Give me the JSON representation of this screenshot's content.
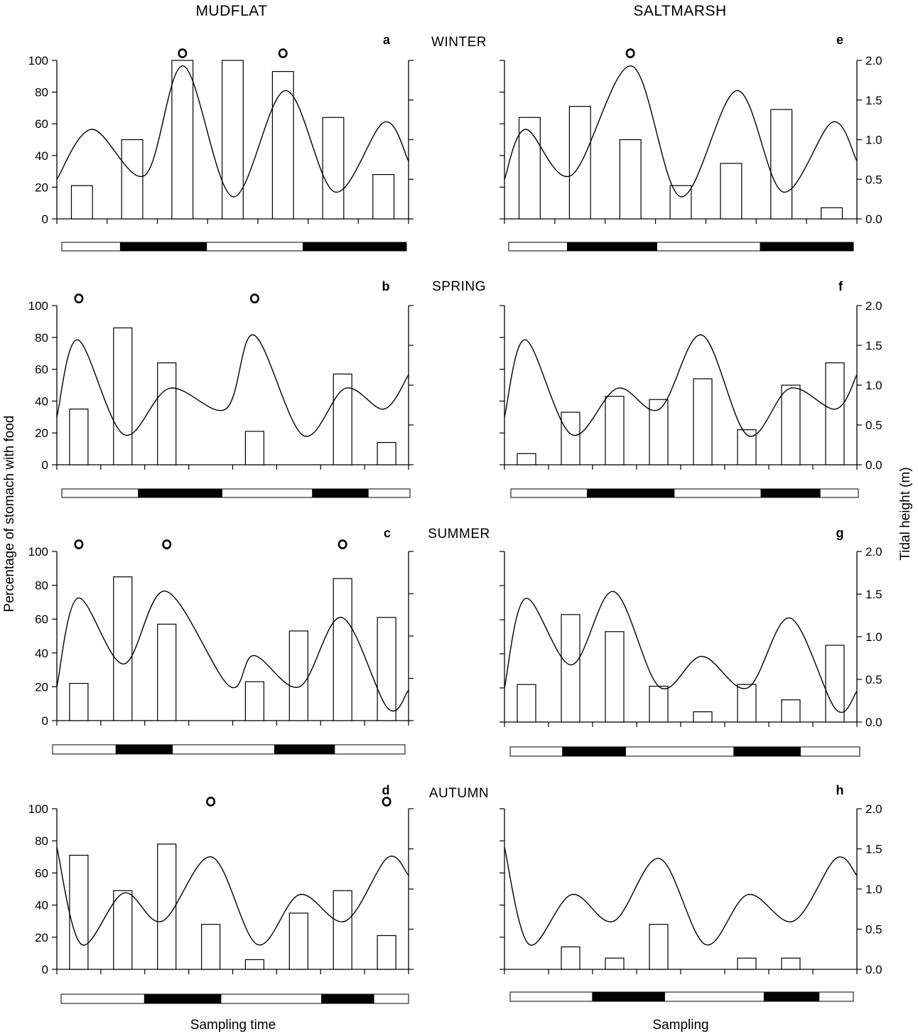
{
  "column_titles": [
    "MUDFLAT",
    "SALTMARSH"
  ],
  "season_labels": [
    "WINTER",
    "SPRING",
    "SUMMER",
    "AUTUMN"
  ],
  "left_axis_title": "Percentage of stomach with food",
  "right_axis_title": "Tidal height (m)",
  "x_labels": {
    "left": "Sampling time",
    "right": "Sampling"
  },
  "colors": {
    "bar_fill": "#ffffff",
    "stroke": "#000000",
    "night": "#000000",
    "day": "#ffffff"
  },
  "chart_data": [
    {
      "type": "bar",
      "panel": "a",
      "column": "MUDFLAT",
      "season": "WINTER",
      "ylabel": "Percentage of stomach with food",
      "ylim": [
        0,
        100
      ],
      "yticks": [
        0,
        20,
        40,
        60,
        80,
        100
      ],
      "n_slots": 7,
      "bar_slots": [
        0,
        1,
        2,
        3,
        4,
        5,
        6
      ],
      "values": [
        21,
        50,
        100,
        100,
        93,
        64,
        28
      ],
      "marker_slots": [
        2,
        4
      ],
      "tide_line": {
        "y2lim": [
          0,
          2
        ],
        "x": [
          0,
          0.1,
          0.25,
          0.36,
          0.5,
          0.65,
          0.79,
          0.93,
          1
        ],
        "y": [
          0.5,
          1.13,
          0.55,
          1.93,
          0.28,
          1.62,
          0.34,
          1.22,
          0.73
        ]
      },
      "light_bar": [
        [
          "day",
          0,
          0.17
        ],
        [
          "night",
          0.17,
          0.42
        ],
        [
          "day",
          0.42,
          0.7
        ],
        [
          "night",
          0.7,
          1
        ]
      ]
    },
    {
      "type": "bar",
      "panel": "b",
      "column": "MUDFLAT",
      "season": "SPRING",
      "ylabel": "Percentage of stomach with food",
      "ylim": [
        0,
        100
      ],
      "yticks": [
        0,
        20,
        40,
        60,
        80,
        100
      ],
      "n_slots": 8,
      "bar_slots": [
        0,
        1,
        2,
        4,
        6,
        7
      ],
      "values": [
        35,
        86,
        64,
        21,
        57,
        14
      ],
      "marker_slots": [
        0,
        4
      ],
      "tide_line": {
        "y2lim": [
          0,
          2
        ],
        "x": [
          0,
          0.06,
          0.19,
          0.32,
          0.48,
          0.56,
          0.7,
          0.82,
          0.93,
          1
        ],
        "y": [
          0.6,
          1.57,
          0.38,
          0.96,
          0.7,
          1.63,
          0.37,
          0.96,
          0.7,
          1.13
        ]
      },
      "light_bar": [
        [
          "day",
          0,
          0.22
        ],
        [
          "night",
          0.22,
          0.46
        ],
        [
          "day",
          0.46,
          0.72
        ],
        [
          "night",
          0.72,
          0.88
        ],
        [
          "day",
          0.88,
          1
        ]
      ]
    },
    {
      "type": "bar",
      "panel": "c",
      "column": "MUDFLAT",
      "season": "SUMMER",
      "ylabel": "Percentage of stomach with food",
      "ylim": [
        0,
        100
      ],
      "yticks": [
        0,
        20,
        40,
        60,
        80,
        100
      ],
      "n_slots": 8,
      "bar_slots": [
        0,
        1,
        2,
        4,
        5,
        6,
        7
      ],
      "values": [
        22,
        85,
        57,
        23,
        53,
        84,
        61
      ],
      "marker_slots": [
        0,
        2,
        6
      ],
      "tide_line": {
        "y2lim": [
          0,
          2
        ],
        "x": [
          0,
          0.06,
          0.19,
          0.31,
          0.49,
          0.56,
          0.69,
          0.81,
          0.94,
          1
        ],
        "y": [
          0.4,
          1.45,
          0.67,
          1.53,
          0.41,
          0.77,
          0.4,
          1.22,
          0.15,
          0.36
        ]
      },
      "light_bar": [
        [
          "day",
          0,
          0.18
        ],
        [
          "night",
          0.18,
          0.34
        ],
        [
          "day",
          0.34,
          0.63
        ],
        [
          "night",
          0.63,
          0.8
        ],
        [
          "day",
          0.8,
          1
        ]
      ]
    },
    {
      "type": "bar",
      "panel": "d",
      "column": "MUDFLAT",
      "season": "AUTUMN",
      "ylabel": "Percentage of stomach with food",
      "ylim": [
        0,
        100
      ],
      "yticks": [
        0,
        20,
        40,
        60,
        80,
        100
      ],
      "n_slots": 8,
      "bar_slots": [
        0,
        1,
        2,
        3,
        4,
        5,
        6,
        7
      ],
      "values": [
        71,
        49,
        78,
        28,
        6,
        35,
        49,
        21
      ],
      "marker_slots": [
        3,
        7
      ],
      "tide_line": {
        "y2lim": [
          0,
          2
        ],
        "x": [
          0,
          0.07,
          0.19,
          0.3,
          0.44,
          0.57,
          0.69,
          0.82,
          0.94,
          1
        ],
        "y": [
          1.52,
          0.31,
          0.95,
          0.6,
          1.4,
          0.31,
          0.93,
          0.6,
          1.39,
          1.17
        ]
      },
      "light_bar": [
        [
          "day",
          0,
          0.24
        ],
        [
          "night",
          0.24,
          0.46
        ],
        [
          "day",
          0.46,
          0.75
        ],
        [
          "night",
          0.75,
          0.9
        ],
        [
          "day",
          0.9,
          1
        ]
      ]
    },
    {
      "type": "bar",
      "panel": "e",
      "column": "SALTMARSH",
      "season": "WINTER",
      "y2label": "Tidal height (m)",
      "ylim": [
        0,
        100
      ],
      "y2lim": [
        0,
        2
      ],
      "y2ticks": [
        "0.0",
        "0.5",
        "1.0",
        "1.5",
        "2.0"
      ],
      "n_slots": 7,
      "bar_slots": [
        0,
        1,
        2,
        3,
        4,
        5,
        6
      ],
      "values": [
        64,
        71,
        50,
        21,
        35,
        69,
        7
      ],
      "marker_slots": [
        2
      ],
      "tide_line": {
        "y2lim": [
          0,
          2
        ],
        "x": [
          0,
          0.06,
          0.19,
          0.36,
          0.5,
          0.66,
          0.79,
          0.93,
          1
        ],
        "y": [
          0.5,
          1.13,
          0.55,
          1.93,
          0.28,
          1.62,
          0.34,
          1.22,
          0.73
        ]
      },
      "light_bar": [
        [
          "day",
          0,
          0.17
        ],
        [
          "night",
          0.17,
          0.43
        ],
        [
          "day",
          0.43,
          0.73
        ],
        [
          "night",
          0.73,
          1
        ]
      ]
    },
    {
      "type": "bar",
      "panel": "f",
      "column": "SALTMARSH",
      "season": "SPRING",
      "y2label": "Tidal height (m)",
      "ylim": [
        0,
        100
      ],
      "y2lim": [
        0,
        2
      ],
      "y2ticks": [
        "0.0",
        "0.5",
        "1.0",
        "1.5",
        "2.0"
      ],
      "n_slots": 8,
      "bar_slots": [
        0,
        1,
        2,
        3,
        4,
        5,
        6,
        7
      ],
      "values": [
        7,
        33,
        43,
        41,
        54,
        22,
        50,
        64
      ],
      "marker_slots": [],
      "tide_line": {
        "y2lim": [
          0,
          2
        ],
        "x": [
          0,
          0.06,
          0.19,
          0.32,
          0.44,
          0.56,
          0.69,
          0.81,
          0.94,
          1
        ],
        "y": [
          0.6,
          1.57,
          0.38,
          0.96,
          0.7,
          1.63,
          0.37,
          0.96,
          0.7,
          1.13
        ]
      },
      "light_bar": [
        [
          "day",
          0,
          0.22
        ],
        [
          "night",
          0.22,
          0.47
        ],
        [
          "day",
          0.47,
          0.72
        ],
        [
          "night",
          0.72,
          0.89
        ],
        [
          "day",
          0.89,
          1
        ]
      ]
    },
    {
      "type": "bar",
      "panel": "g",
      "column": "SALTMARSH",
      "season": "SUMMER",
      "y2label": "Tidal height (m)",
      "ylim": [
        0,
        100
      ],
      "y2lim": [
        0,
        2
      ],
      "y2ticks": [
        "0.0",
        "0.5",
        "1.0",
        "1.5",
        "2.0"
      ],
      "n_slots": 8,
      "bar_slots": [
        0,
        1,
        2,
        3,
        4,
        5,
        6,
        7
      ],
      "values": [
        22,
        63,
        53,
        21,
        6,
        22,
        13,
        45
      ],
      "marker_slots": [],
      "tide_line": {
        "y2lim": [
          0,
          2
        ],
        "x": [
          0,
          0.06,
          0.19,
          0.31,
          0.44,
          0.56,
          0.69,
          0.81,
          0.94,
          1
        ],
        "y": [
          0.4,
          1.45,
          0.67,
          1.53,
          0.41,
          0.77,
          0.4,
          1.22,
          0.15,
          0.36
        ]
      },
      "light_bar": [
        [
          "day",
          0,
          0.15
        ],
        [
          "night",
          0.15,
          0.33
        ],
        [
          "day",
          0.33,
          0.64
        ],
        [
          "night",
          0.64,
          0.83
        ],
        [
          "day",
          0.83,
          1
        ]
      ]
    },
    {
      "type": "bar",
      "panel": "h",
      "column": "SALTMARSH",
      "season": "AUTUMN",
      "y2label": "Tidal height (m)",
      "ylim": [
        0,
        100
      ],
      "y2lim": [
        0,
        2
      ],
      "y2ticks": [
        "0.0",
        "0.5",
        "1.0",
        "1.5",
        "2.0"
      ],
      "n_slots": 8,
      "bar_slots": [
        1,
        2,
        3,
        5,
        6
      ],
      "values": [
        14,
        7,
        28,
        7,
        7
      ],
      "marker_slots": [],
      "tide_line": {
        "y2lim": [
          0,
          2
        ],
        "x": [
          0,
          0.07,
          0.19,
          0.31,
          0.44,
          0.57,
          0.69,
          0.82,
          0.94,
          1
        ],
        "y": [
          1.52,
          0.31,
          0.93,
          0.6,
          1.38,
          0.31,
          0.93,
          0.6,
          1.38,
          1.17
        ]
      },
      "light_bar": [
        [
          "day",
          0,
          0.24
        ],
        [
          "night",
          0.24,
          0.45
        ],
        [
          "day",
          0.45,
          0.74
        ],
        [
          "night",
          0.74,
          0.9
        ],
        [
          "day",
          0.9,
          1
        ]
      ]
    }
  ]
}
